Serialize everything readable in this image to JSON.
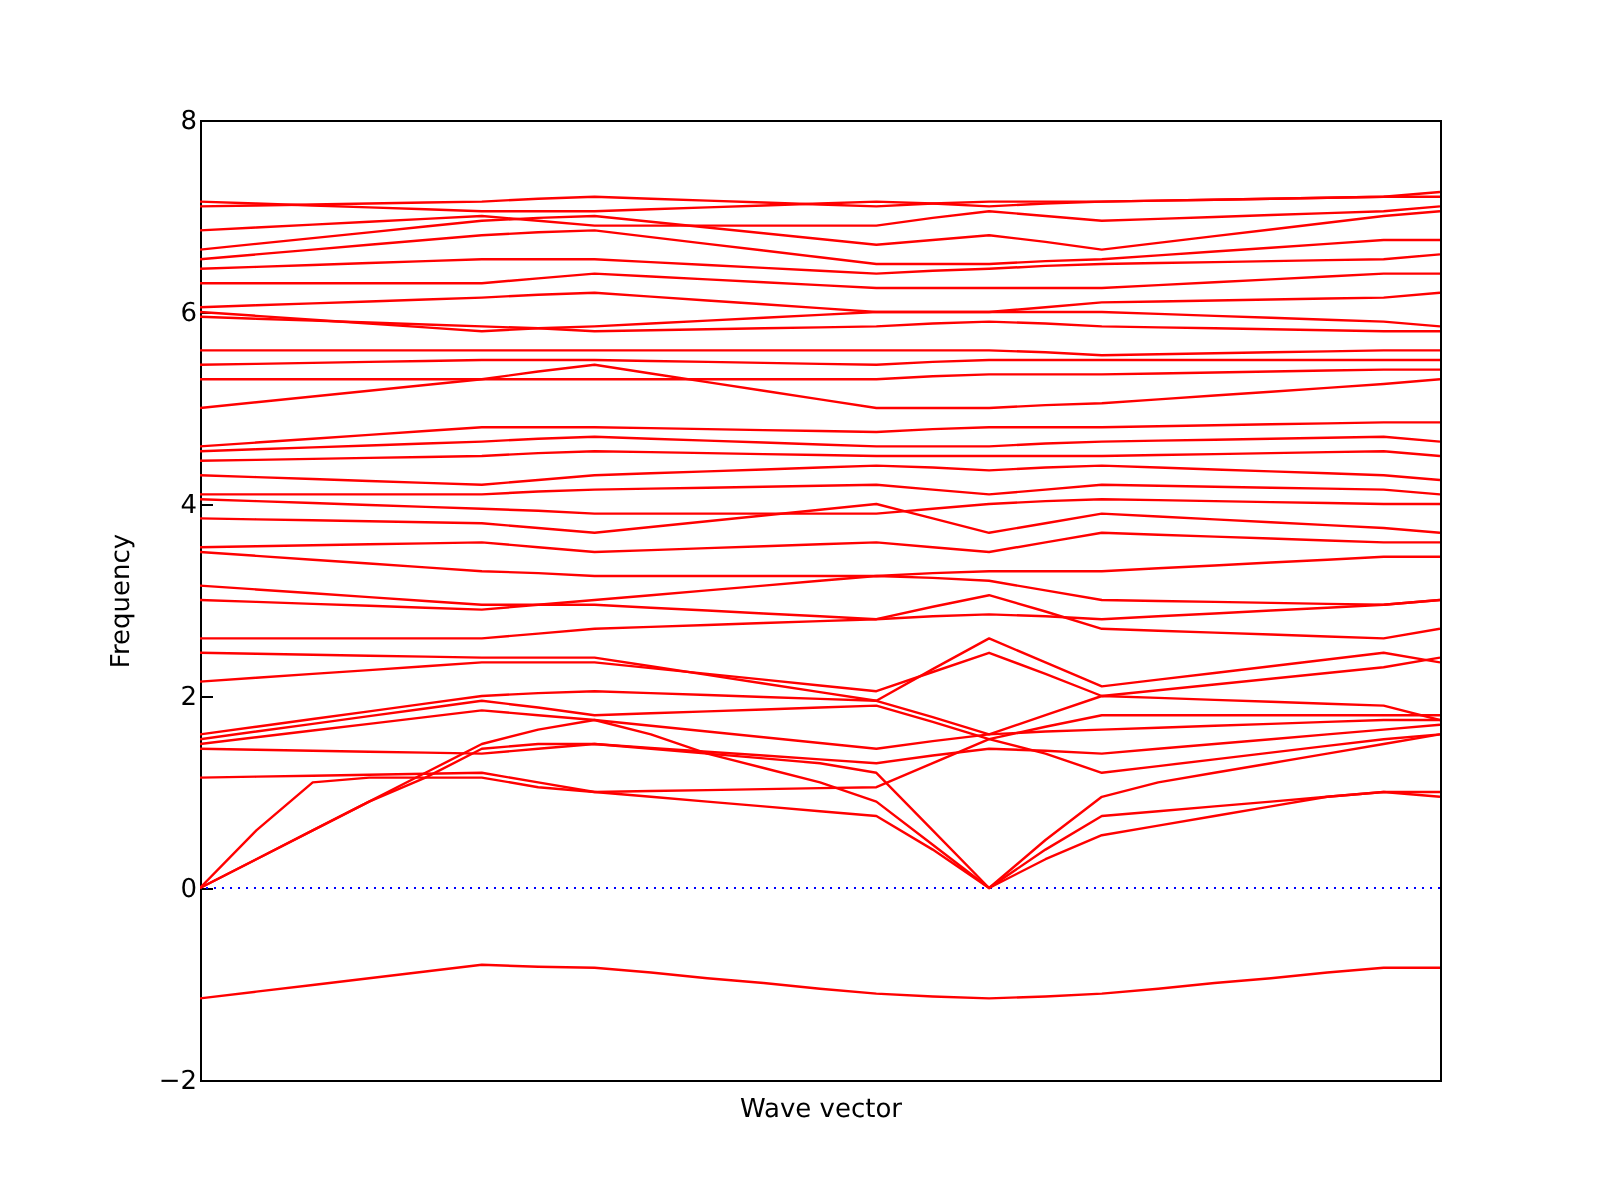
{
  "chart_data": {
    "type": "line",
    "xlabel": "Wave vector",
    "ylabel": "Frequency",
    "categories": [
      null,
      null,
      null,
      null,
      null,
      null,
      null,
      null,
      null,
      null,
      null,
      null,
      null,
      null,
      null,
      null,
      null,
      null,
      null,
      null,
      null,
      null,
      null
    ],
    "ylim": [
      -2,
      8
    ],
    "yticks": [
      {
        "value": -2,
        "label": "−2"
      },
      0,
      2,
      4,
      6,
      8
    ],
    "tick_labels": "y",
    "grid": false,
    "legend": false,
    "ref_lines": [
      {
        "axis": "y",
        "value": 0,
        "color": "#0000ff",
        "line_style": "dotted"
      }
    ],
    "series": [
      {
        "color": "#ff0000",
        "values": [
          -1.15,
          -1.08,
          -1.01,
          -0.94,
          -0.87,
          -0.8,
          -0.82,
          -0.83,
          -0.88,
          -0.94,
          -0.99,
          -1.05,
          -1.1,
          -1.13,
          -1.15,
          -1.13,
          -1.1,
          -1.05,
          -0.99,
          -0.94,
          -0.88,
          -0.83,
          -0.83
        ]
      },
      {
        "color": "#ff0000",
        "values": [
          0,
          0.6,
          1.1,
          1.15,
          1.15,
          1.15,
          1.05,
          1.0,
          0.95,
          0.9,
          0.85,
          0.8,
          0.75,
          0.4,
          0,
          0.4,
          0.75,
          0.8,
          0.85,
          0.9,
          0.95,
          1.0,
          0.95
        ]
      },
      {
        "color": "#ff0000",
        "values": [
          0,
          0.3,
          0.6,
          0.9,
          1.2,
          1.5,
          1.65,
          1.75,
          1.6,
          1.4,
          1.25,
          1.1,
          0.9,
          0.45,
          0,
          0.3,
          0.55,
          0.65,
          0.75,
          0.85,
          0.95,
          1.0,
          1.0
        ]
      },
      {
        "color": "#ff0000",
        "values": [
          0,
          0.3,
          0.6,
          0.9,
          1.15,
          1.45,
          1.5,
          1.5,
          1.45,
          1.4,
          1.35,
          1.3,
          1.2,
          0.6,
          0,
          0.5,
          0.95,
          1.1,
          1.2,
          1.3,
          1.4,
          1.5,
          1.6
        ]
      },
      {
        "color": "#ff0000",
        "values": [
          1.15,
          1.16,
          1.17,
          1.18,
          1.19,
          1.2,
          1.1,
          1.0,
          1.01,
          1.02,
          1.03,
          1.04,
          1.05,
          1.3,
          1.55,
          1.4,
          1.2,
          1.27,
          1.34,
          1.41,
          1.48,
          1.55,
          1.6
        ]
      },
      {
        "color": "#ff0000",
        "values": [
          1.45,
          1.44,
          1.43,
          1.42,
          1.41,
          1.4,
          1.45,
          1.5,
          1.46,
          1.42,
          1.38,
          1.34,
          1.3,
          1.38,
          1.45,
          1.43,
          1.4,
          1.45,
          1.5,
          1.55,
          1.6,
          1.65,
          1.7
        ]
      },
      {
        "color": "#ff0000",
        "values": [
          1.5,
          1.57,
          1.64,
          1.71,
          1.78,
          1.85,
          1.8,
          1.75,
          1.69,
          1.63,
          1.57,
          1.51,
          1.45,
          1.53,
          1.6,
          1.63,
          1.65,
          1.67,
          1.69,
          1.71,
          1.73,
          1.75,
          1.75
        ]
      },
      {
        "color": "#ff0000",
        "values": [
          1.55,
          1.63,
          1.71,
          1.79,
          1.87,
          1.95,
          1.88,
          1.8,
          1.82,
          1.84,
          1.86,
          1.88,
          1.9,
          1.73,
          1.55,
          1.68,
          1.8,
          1.8,
          1.8,
          1.8,
          1.8,
          1.8,
          1.8
        ]
      },
      {
        "color": "#ff0000",
        "values": [
          1.6,
          1.68,
          1.76,
          1.84,
          1.92,
          2.0,
          2.03,
          2.05,
          2.03,
          2.01,
          1.99,
          1.97,
          1.95,
          1.78,
          1.6,
          1.8,
          2.0,
          1.98,
          1.96,
          1.94,
          1.92,
          1.9,
          1.75
        ]
      },
      {
        "color": "#ff0000",
        "values": [
          2.15,
          2.19,
          2.23,
          2.27,
          2.31,
          2.35,
          2.35,
          2.35,
          2.29,
          2.23,
          2.17,
          2.11,
          2.05,
          2.25,
          2.45,
          2.23,
          2.0,
          2.06,
          2.12,
          2.18,
          2.24,
          2.3,
          2.4
        ]
      },
      {
        "color": "#ff0000",
        "values": [
          2.45,
          2.44,
          2.43,
          2.42,
          2.41,
          2.4,
          2.4,
          2.4,
          2.31,
          2.22,
          2.13,
          2.04,
          1.95,
          2.28,
          2.6,
          2.35,
          2.1,
          2.17,
          2.24,
          2.31,
          2.38,
          2.45,
          2.35
        ]
      },
      {
        "color": "#ff0000",
        "values": [
          2.6,
          2.6,
          2.6,
          2.6,
          2.6,
          2.6,
          2.65,
          2.7,
          2.72,
          2.74,
          2.76,
          2.78,
          2.8,
          2.93,
          3.05,
          2.88,
          2.7,
          2.68,
          2.66,
          2.64,
          2.62,
          2.6,
          2.7
        ]
      },
      {
        "color": "#ff0000",
        "values": [
          3.0,
          2.98,
          2.96,
          2.94,
          2.92,
          2.9,
          2.95,
          3.0,
          3.05,
          3.1,
          3.15,
          3.2,
          3.25,
          3.23,
          3.2,
          3.1,
          3.0,
          2.99,
          2.98,
          2.97,
          2.96,
          2.95,
          3.0
        ]
      },
      {
        "color": "#ff0000",
        "values": [
          3.15,
          3.11,
          3.07,
          3.03,
          2.99,
          2.95,
          2.95,
          2.95,
          2.92,
          2.89,
          2.86,
          2.83,
          2.8,
          2.83,
          2.85,
          2.83,
          2.8,
          2.83,
          2.86,
          2.89,
          2.92,
          2.95,
          3.0
        ]
      },
      {
        "color": "#ff0000",
        "values": [
          3.5,
          3.46,
          3.42,
          3.38,
          3.34,
          3.3,
          3.28,
          3.25,
          3.25,
          3.25,
          3.25,
          3.25,
          3.25,
          3.28,
          3.3,
          3.3,
          3.3,
          3.33,
          3.36,
          3.39,
          3.42,
          3.45,
          3.45
        ]
      },
      {
        "color": "#ff0000",
        "values": [
          3.55,
          3.56,
          3.57,
          3.58,
          3.59,
          3.6,
          3.55,
          3.5,
          3.52,
          3.54,
          3.56,
          3.58,
          3.6,
          3.55,
          3.5,
          3.6,
          3.7,
          3.68,
          3.66,
          3.64,
          3.62,
          3.6,
          3.6
        ]
      },
      {
        "color": "#ff0000",
        "values": [
          3.85,
          3.84,
          3.83,
          3.82,
          3.81,
          3.8,
          3.75,
          3.7,
          3.76,
          3.82,
          3.88,
          3.94,
          4.0,
          3.85,
          3.7,
          3.8,
          3.9,
          3.87,
          3.84,
          3.81,
          3.78,
          3.75,
          3.7
        ]
      },
      {
        "color": "#ff0000",
        "values": [
          4.05,
          4.03,
          4.01,
          3.99,
          3.97,
          3.95,
          3.93,
          3.9,
          3.9,
          3.9,
          3.9,
          3.9,
          3.9,
          3.95,
          4.0,
          4.03,
          4.05,
          4.04,
          4.03,
          4.02,
          4.01,
          4.0,
          4.0
        ]
      },
      {
        "color": "#ff0000",
        "values": [
          4.1,
          4.1,
          4.1,
          4.1,
          4.1,
          4.1,
          4.13,
          4.15,
          4.16,
          4.17,
          4.18,
          4.19,
          4.2,
          4.15,
          4.1,
          4.15,
          4.2,
          4.19,
          4.18,
          4.17,
          4.16,
          4.15,
          4.1
        ]
      },
      {
        "color": "#ff0000",
        "values": [
          4.3,
          4.28,
          4.26,
          4.24,
          4.22,
          4.2,
          4.25,
          4.3,
          4.32,
          4.34,
          4.36,
          4.38,
          4.4,
          4.38,
          4.35,
          4.38,
          4.4,
          4.38,
          4.36,
          4.34,
          4.32,
          4.3,
          4.25
        ]
      },
      {
        "color": "#ff0000",
        "values": [
          4.45,
          4.46,
          4.47,
          4.48,
          4.49,
          4.5,
          4.53,
          4.55,
          4.54,
          4.53,
          4.52,
          4.51,
          4.5,
          4.5,
          4.5,
          4.5,
          4.5,
          4.51,
          4.52,
          4.53,
          4.54,
          4.55,
          4.5
        ]
      },
      {
        "color": "#ff0000",
        "values": [
          4.55,
          4.57,
          4.59,
          4.61,
          4.63,
          4.65,
          4.68,
          4.7,
          4.68,
          4.66,
          4.64,
          4.62,
          4.6,
          4.6,
          4.6,
          4.63,
          4.65,
          4.66,
          4.67,
          4.68,
          4.69,
          4.7,
          4.65
        ]
      },
      {
        "color": "#ff0000",
        "values": [
          4.6,
          4.64,
          4.68,
          4.72,
          4.76,
          4.8,
          4.8,
          4.8,
          4.79,
          4.78,
          4.77,
          4.76,
          4.75,
          4.78,
          4.8,
          4.8,
          4.8,
          4.81,
          4.82,
          4.83,
          4.84,
          4.85,
          4.85
        ]
      },
      {
        "color": "#ff0000",
        "values": [
          5.0,
          5.06,
          5.12,
          5.18,
          5.24,
          5.3,
          5.38,
          5.45,
          5.36,
          5.27,
          5.18,
          5.09,
          5.0,
          5.0,
          5.0,
          5.03,
          5.05,
          5.09,
          5.13,
          5.17,
          5.21,
          5.25,
          5.3
        ]
      },
      {
        "color": "#ff0000",
        "values": [
          5.3,
          5.3,
          5.3,
          5.3,
          5.3,
          5.3,
          5.3,
          5.3,
          5.3,
          5.3,
          5.3,
          5.3,
          5.3,
          5.33,
          5.35,
          5.35,
          5.35,
          5.36,
          5.37,
          5.38,
          5.39,
          5.4,
          5.4
        ]
      },
      {
        "color": "#ff0000",
        "values": [
          5.45,
          5.46,
          5.47,
          5.48,
          5.49,
          5.5,
          5.5,
          5.5,
          5.49,
          5.48,
          5.47,
          5.46,
          5.45,
          5.48,
          5.5,
          5.5,
          5.5,
          5.5,
          5.5,
          5.5,
          5.5,
          5.5,
          5.5
        ]
      },
      {
        "color": "#ff0000",
        "values": [
          5.6,
          5.6,
          5.6,
          5.6,
          5.6,
          5.6,
          5.6,
          5.6,
          5.6,
          5.6,
          5.6,
          5.6,
          5.6,
          5.6,
          5.6,
          5.58,
          5.55,
          5.56,
          5.57,
          5.58,
          5.59,
          5.6,
          5.6
        ]
      },
      {
        "color": "#ff0000",
        "values": [
          5.95,
          5.93,
          5.91,
          5.89,
          5.87,
          5.85,
          5.83,
          5.8,
          5.81,
          5.82,
          5.83,
          5.84,
          5.85,
          5.88,
          5.9,
          5.88,
          5.85,
          5.84,
          5.83,
          5.82,
          5.81,
          5.8,
          5.8
        ]
      },
      {
        "color": "#ff0000",
        "values": [
          6.0,
          5.96,
          5.92,
          5.88,
          5.84,
          5.8,
          5.83,
          5.85,
          5.88,
          5.91,
          5.94,
          5.97,
          6.0,
          6.0,
          6.0,
          6.0,
          6.0,
          5.98,
          5.96,
          5.94,
          5.92,
          5.9,
          5.85
        ]
      },
      {
        "color": "#ff0000",
        "values": [
          6.05,
          6.07,
          6.09,
          6.11,
          6.13,
          6.15,
          6.18,
          6.2,
          6.16,
          6.12,
          6.08,
          6.04,
          6.0,
          6.0,
          6.0,
          6.05,
          6.1,
          6.11,
          6.12,
          6.13,
          6.14,
          6.15,
          6.2
        ]
      },
      {
        "color": "#ff0000",
        "values": [
          6.3,
          6.3,
          6.3,
          6.3,
          6.3,
          6.3,
          6.35,
          6.4,
          6.37,
          6.34,
          6.31,
          6.28,
          6.25,
          6.25,
          6.25,
          6.25,
          6.25,
          6.28,
          6.31,
          6.34,
          6.37,
          6.4,
          6.4
        ]
      },
      {
        "color": "#ff0000",
        "values": [
          6.45,
          6.47,
          6.49,
          6.51,
          6.53,
          6.55,
          6.55,
          6.55,
          6.52,
          6.49,
          6.46,
          6.43,
          6.4,
          6.43,
          6.45,
          6.48,
          6.5,
          6.51,
          6.52,
          6.53,
          6.54,
          6.55,
          6.6
        ]
      },
      {
        "color": "#ff0000",
        "values": [
          6.55,
          6.6,
          6.65,
          6.7,
          6.75,
          6.8,
          6.83,
          6.85,
          6.78,
          6.71,
          6.64,
          6.57,
          6.5,
          6.5,
          6.5,
          6.53,
          6.55,
          6.59,
          6.63,
          6.67,
          6.71,
          6.75,
          6.75
        ]
      },
      {
        "color": "#ff0000",
        "values": [
          6.65,
          6.71,
          6.77,
          6.83,
          6.89,
          6.95,
          6.98,
          7.0,
          6.94,
          6.88,
          6.82,
          6.76,
          6.7,
          6.75,
          6.8,
          6.73,
          6.65,
          6.72,
          6.79,
          6.86,
          6.93,
          7.0,
          7.05
        ]
      },
      {
        "color": "#ff0000",
        "values": [
          6.85,
          6.88,
          6.91,
          6.94,
          6.97,
          7.0,
          6.95,
          6.9,
          6.9,
          6.9,
          6.9,
          6.9,
          6.9,
          6.98,
          7.05,
          7.0,
          6.95,
          6.97,
          6.99,
          7.01,
          7.03,
          7.05,
          7.1
        ]
      },
      {
        "color": "#ff0000",
        "values": [
          7.1,
          7.11,
          7.12,
          7.13,
          7.14,
          7.15,
          7.18,
          7.2,
          7.18,
          7.16,
          7.14,
          7.12,
          7.1,
          7.13,
          7.15,
          7.15,
          7.15,
          7.16,
          7.17,
          7.18,
          7.19,
          7.2,
          7.2
        ]
      },
      {
        "color": "#ff0000",
        "values": [
          7.15,
          7.13,
          7.11,
          7.09,
          7.07,
          7.05,
          7.05,
          7.05,
          7.07,
          7.09,
          7.11,
          7.13,
          7.15,
          7.13,
          7.1,
          7.13,
          7.15,
          7.16,
          7.17,
          7.18,
          7.19,
          7.2,
          7.25
        ]
      }
    ]
  }
}
